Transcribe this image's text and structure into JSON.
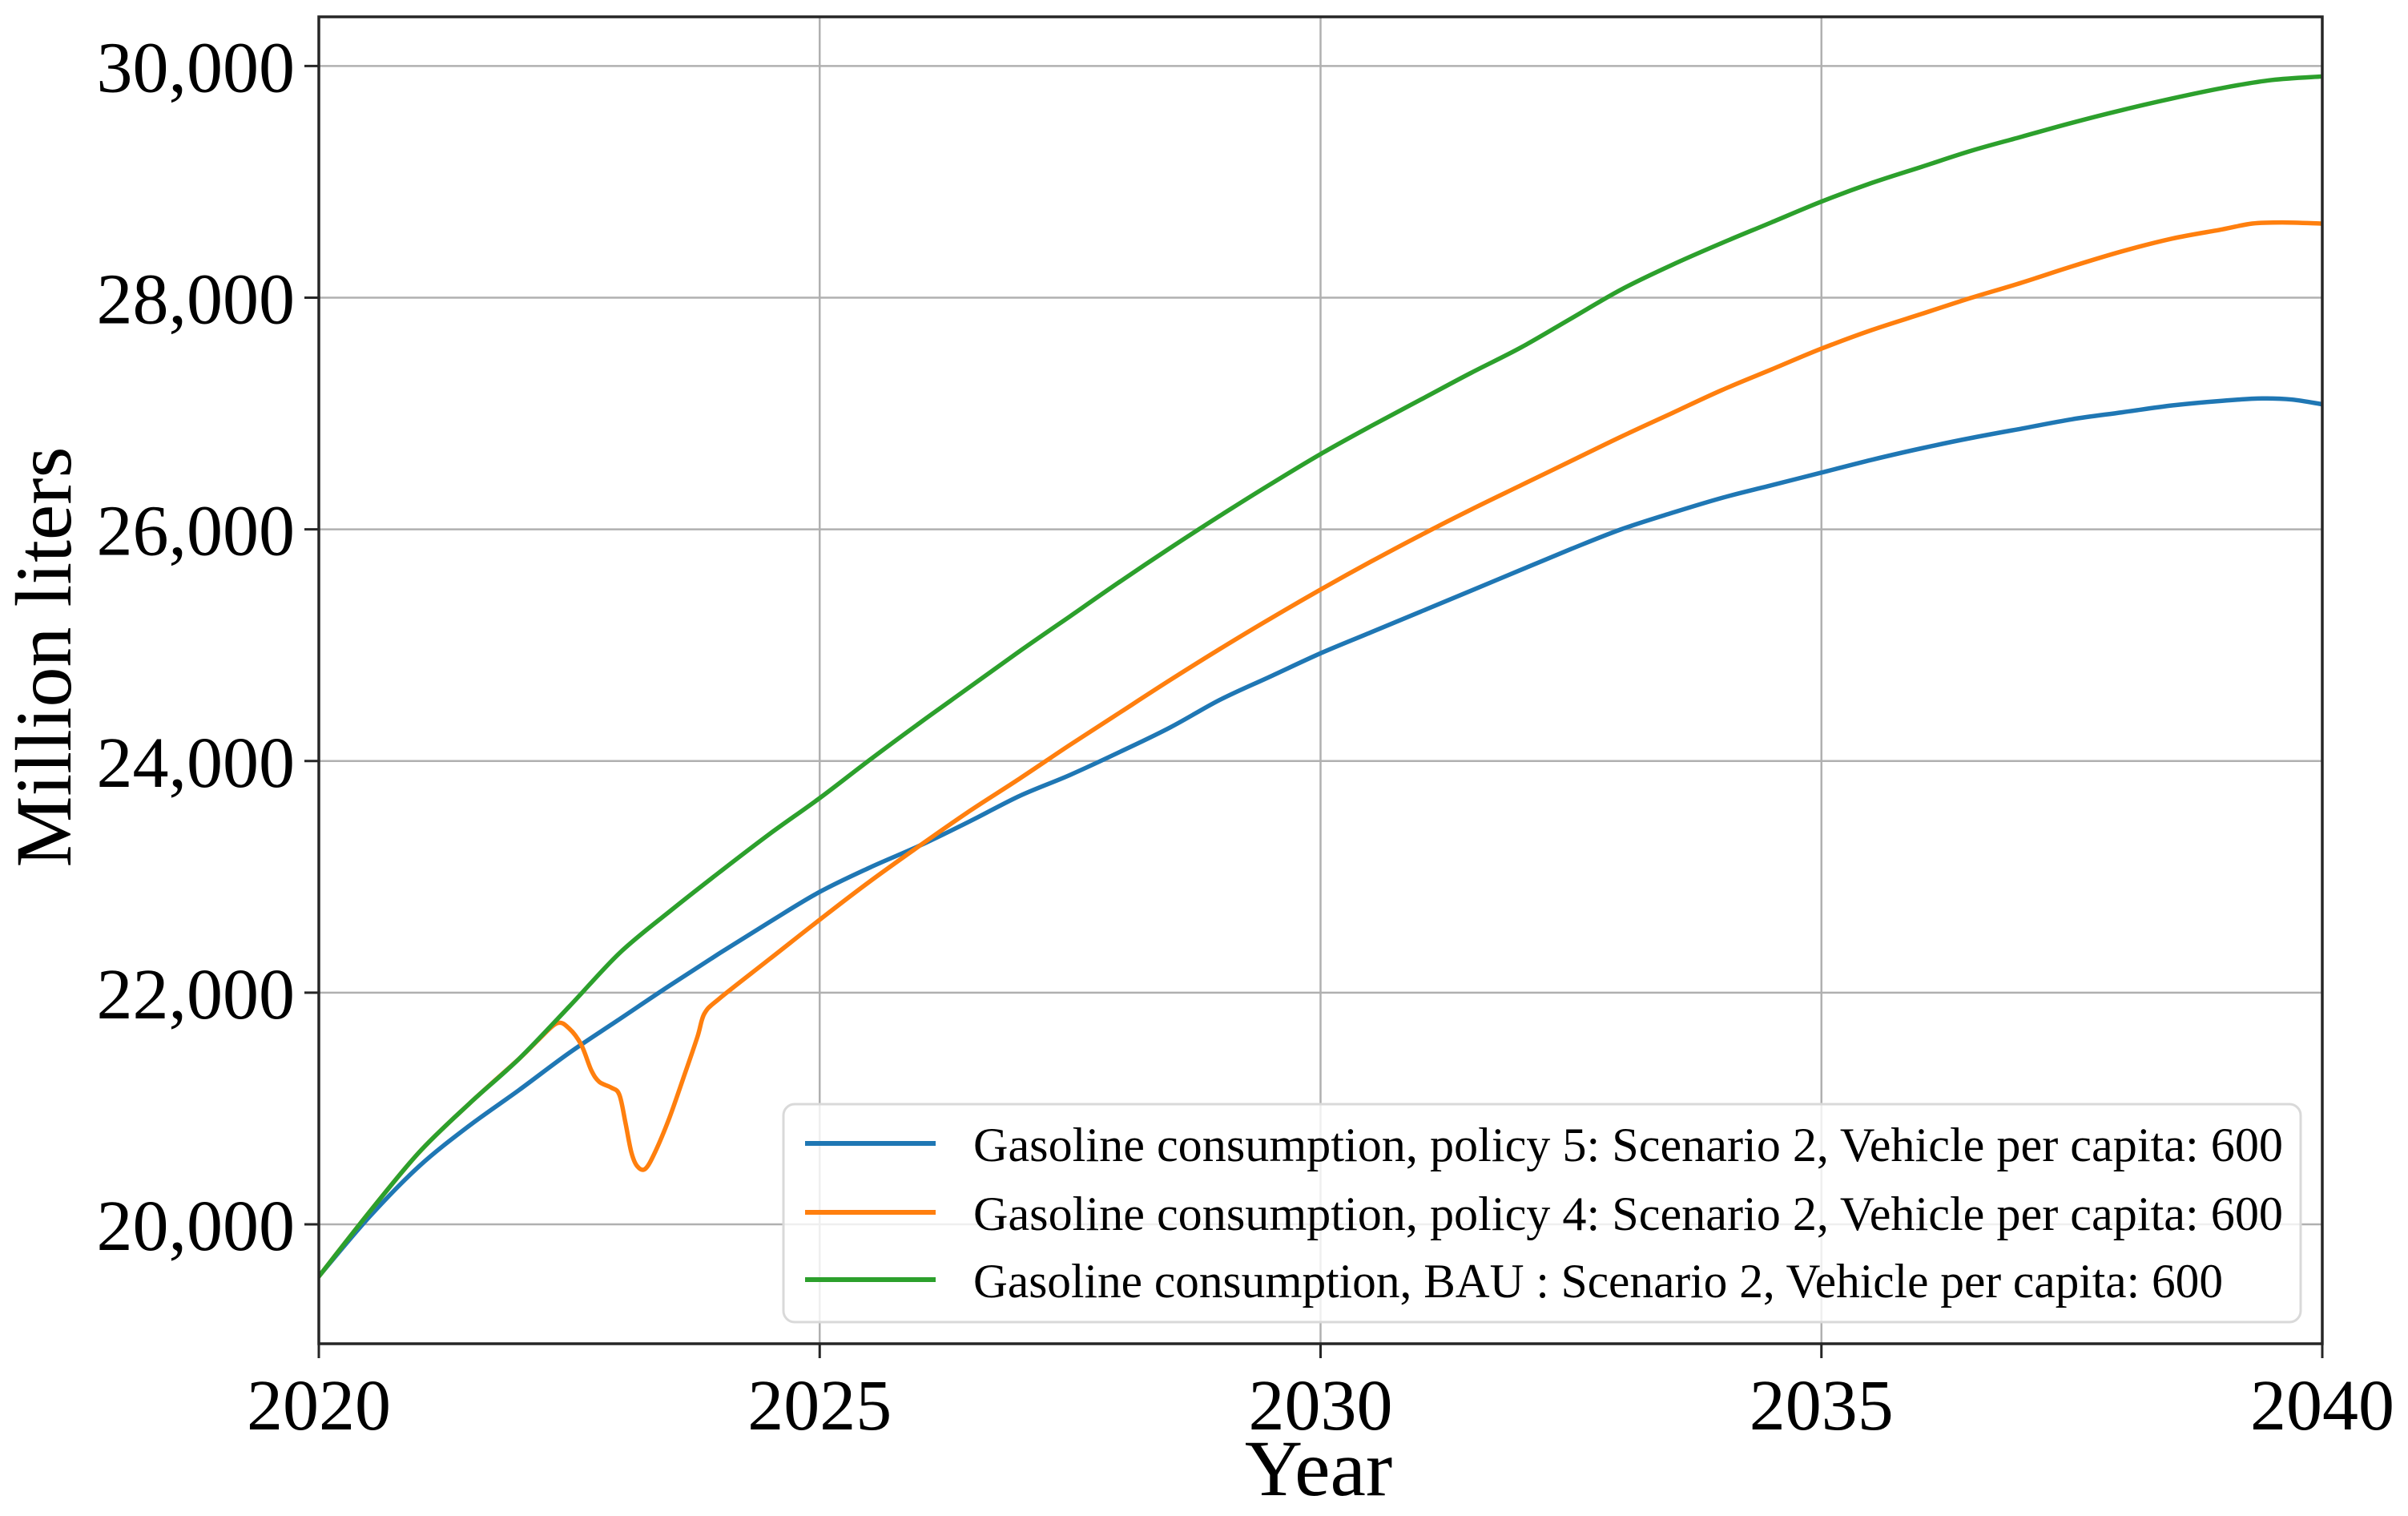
{
  "figure": {
    "background_color": "#ffffff",
    "spine_color": "#262626",
    "grid_color": "#b0b0b0",
    "tick_color": "#262626",
    "legend_border_color": "#d9d9d9",
    "legend_background_color": "#ffffff"
  },
  "chart_data": {
    "type": "line",
    "title": "",
    "xlabel": "Year",
    "ylabel": "Million liters",
    "xlim": [
      2020,
      2040
    ],
    "ylim": [
      18969,
      30425
    ],
    "grid": true,
    "legend_position": "lower right",
    "xticks": [
      {
        "value": 2020,
        "label": "2020"
      },
      {
        "value": 2025,
        "label": "2025"
      },
      {
        "value": 2030,
        "label": "2030"
      },
      {
        "value": 2035,
        "label": "2035"
      },
      {
        "value": 2040,
        "label": "2040"
      }
    ],
    "yticks": [
      {
        "value": 20000,
        "label": "20,000"
      },
      {
        "value": 22000,
        "label": "22,000"
      },
      {
        "value": 24000,
        "label": "24,000"
      },
      {
        "value": 26000,
        "label": "26,000"
      },
      {
        "value": 28000,
        "label": "28,000"
      },
      {
        "value": 30000,
        "label": "30,000"
      }
    ],
    "series": [
      {
        "name": "Gasoline consumption, policy 5: Scenario 2, Vehicle per capita: 600",
        "color": "#1f77b4",
        "points": [
          [
            2020,
            19550
          ],
          [
            2020.5,
            20060
          ],
          [
            2021,
            20500
          ],
          [
            2021.5,
            20850
          ],
          [
            2022,
            21160
          ],
          [
            2022.5,
            21480
          ],
          [
            2023,
            21770
          ],
          [
            2023.5,
            22060
          ],
          [
            2024,
            22340
          ],
          [
            2024.5,
            22610
          ],
          [
            2025,
            22870
          ],
          [
            2025.5,
            23080
          ],
          [
            2026,
            23270
          ],
          [
            2026.5,
            23480
          ],
          [
            2027,
            23700
          ],
          [
            2027.5,
            23880
          ],
          [
            2028,
            24080
          ],
          [
            2028.5,
            24290
          ],
          [
            2029,
            24530
          ],
          [
            2029.5,
            24730
          ],
          [
            2030,
            24930
          ],
          [
            2030.5,
            25110
          ],
          [
            2031,
            25290
          ],
          [
            2031.5,
            25470
          ],
          [
            2032,
            25650
          ],
          [
            2032.5,
            25830
          ],
          [
            2033,
            26000
          ],
          [
            2033.5,
            26140
          ],
          [
            2034,
            26270
          ],
          [
            2034.5,
            26380
          ],
          [
            2035,
            26490
          ],
          [
            2035.5,
            26600
          ],
          [
            2036,
            26700
          ],
          [
            2036.5,
            26790
          ],
          [
            2037,
            26870
          ],
          [
            2037.5,
            26950
          ],
          [
            2038,
            27010
          ],
          [
            2038.5,
            27070
          ],
          [
            2039,
            27110
          ],
          [
            2039.4,
            27130
          ],
          [
            2039.7,
            27120
          ],
          [
            2040,
            27080
          ]
        ]
      },
      {
        "name": "Gasoline consumption, policy 4: Scenario 2, Vehicle per capita: 600",
        "color": "#ff7f0e",
        "points": [
          [
            2020,
            19550
          ],
          [
            2020.5,
            20100
          ],
          [
            2021,
            20620
          ],
          [
            2021.5,
            21040
          ],
          [
            2022,
            21430
          ],
          [
            2022.2,
            21600
          ],
          [
            2022.38,
            21737
          ],
          [
            2022.5,
            21690
          ],
          [
            2022.62,
            21550
          ],
          [
            2022.72,
            21330
          ],
          [
            2022.8,
            21230
          ],
          [
            2022.92,
            21180
          ],
          [
            2023,
            21120
          ],
          [
            2023.06,
            20880
          ],
          [
            2023.12,
            20620
          ],
          [
            2023.18,
            20500
          ],
          [
            2023.26,
            20480
          ],
          [
            2023.36,
            20630
          ],
          [
            2023.5,
            20920
          ],
          [
            2023.65,
            21290
          ],
          [
            2023.78,
            21620
          ],
          [
            2023.85,
            21820
          ],
          [
            2024,
            21950
          ],
          [
            2024.5,
            22290
          ],
          [
            2025,
            22630
          ],
          [
            2025.5,
            22960
          ],
          [
            2026,
            23270
          ],
          [
            2026.5,
            23570
          ],
          [
            2027,
            23850
          ],
          [
            2027.5,
            24140
          ],
          [
            2028,
            24420
          ],
          [
            2028.5,
            24700
          ],
          [
            2029,
            24970
          ],
          [
            2029.5,
            25230
          ],
          [
            2030,
            25480
          ],
          [
            2030.5,
            25720
          ],
          [
            2031,
            25950
          ],
          [
            2031.5,
            26170
          ],
          [
            2032,
            26380
          ],
          [
            2032.5,
            26590
          ],
          [
            2033,
            26800
          ],
          [
            2033.5,
            27000
          ],
          [
            2034,
            27200
          ],
          [
            2034.5,
            27380
          ],
          [
            2035,
            27560
          ],
          [
            2035.5,
            27720
          ],
          [
            2036,
            27860
          ],
          [
            2036.5,
            28000
          ],
          [
            2037,
            28130
          ],
          [
            2037.5,
            28270
          ],
          [
            2038,
            28400
          ],
          [
            2038.5,
            28510
          ],
          [
            2039,
            28590
          ],
          [
            2039.3,
            28640
          ],
          [
            2039.6,
            28650
          ],
          [
            2040,
            28640
          ]
        ]
      },
      {
        "name": "Gasoline consumption, BAU : Scenario 2, Vehicle per capita: 600",
        "color": "#2ca02c",
        "points": [
          [
            2020,
            19550
          ],
          [
            2020.5,
            20100
          ],
          [
            2021,
            20620
          ],
          [
            2021.5,
            21040
          ],
          [
            2022,
            21430
          ],
          [
            2022.5,
            21880
          ],
          [
            2023,
            22340
          ],
          [
            2023.5,
            22700
          ],
          [
            2024,
            23040
          ],
          [
            2024.5,
            23370
          ],
          [
            2025,
            23680
          ],
          [
            2025.5,
            24010
          ],
          [
            2026,
            24330
          ],
          [
            2026.5,
            24640
          ],
          [
            2027,
            24950
          ],
          [
            2027.5,
            25250
          ],
          [
            2028,
            25550
          ],
          [
            2028.5,
            25840
          ],
          [
            2029,
            26120
          ],
          [
            2029.5,
            26390
          ],
          [
            2030,
            26650
          ],
          [
            2030.5,
            26890
          ],
          [
            2031,
            27120
          ],
          [
            2031.5,
            27350
          ],
          [
            2032,
            27570
          ],
          [
            2032.5,
            27820
          ],
          [
            2033,
            28070
          ],
          [
            2033.5,
            28280
          ],
          [
            2034,
            28470
          ],
          [
            2034.5,
            28650
          ],
          [
            2035,
            28830
          ],
          [
            2035.5,
            28990
          ],
          [
            2036,
            29130
          ],
          [
            2036.5,
            29270
          ],
          [
            2037,
            29390
          ],
          [
            2037.5,
            29510
          ],
          [
            2038,
            29620
          ],
          [
            2038.5,
            29720
          ],
          [
            2039,
            29810
          ],
          [
            2039.5,
            29880
          ],
          [
            2040,
            29910
          ]
        ]
      }
    ]
  }
}
